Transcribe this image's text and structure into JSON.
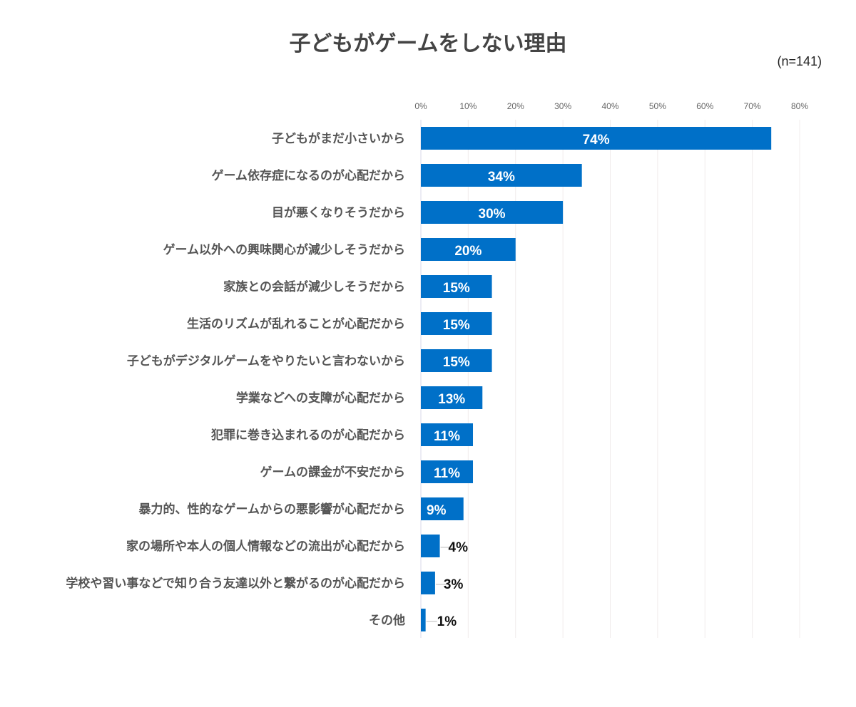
{
  "chart_data": {
    "type": "bar",
    "orientation": "horizontal",
    "title": "子どもがゲームをしない理由",
    "note": "(n=141)",
    "categories": [
      "子どもがまだ小さいから",
      "ゲーム依存症になるのが心配だから",
      "目が悪くなりそうだから",
      "ゲーム以外への興味関心が減少しそうだから",
      "家族との会話が減少しそうだから",
      "生活のリズムが乱れることが心配だから",
      "子どもがデジタルゲームをやりたいと言わないから",
      "学業などへの支障が心配だから",
      "犯罪に巻き込まれるのが心配だから",
      "ゲームの課金が不安だから",
      "暴力的、性的なゲームからの悪影響が心配だから",
      "家の場所や本人の個人情報などの流出が心配だから",
      "学校や習い事などで知り合う友達以外と繋がるのが心配だから",
      "その他"
    ],
    "values": [
      74,
      34,
      30,
      20,
      15,
      15,
      15,
      13,
      11,
      11,
      9,
      4,
      3,
      1
    ],
    "value_labels": [
      "74%",
      "34%",
      "30%",
      "20%",
      "15%",
      "15%",
      "15%",
      "13%",
      "11%",
      "11%",
      "9%",
      "4%",
      "3%",
      "1%"
    ],
    "xlim": [
      0,
      80
    ],
    "xticks": [
      "0%",
      "10%",
      "20%",
      "30%",
      "40%",
      "50%",
      "60%",
      "70%",
      "80%"
    ],
    "grid": true,
    "colors": {
      "bar": "#0070C8",
      "label": "#555555",
      "grid": "#F0ECEC"
    }
  }
}
